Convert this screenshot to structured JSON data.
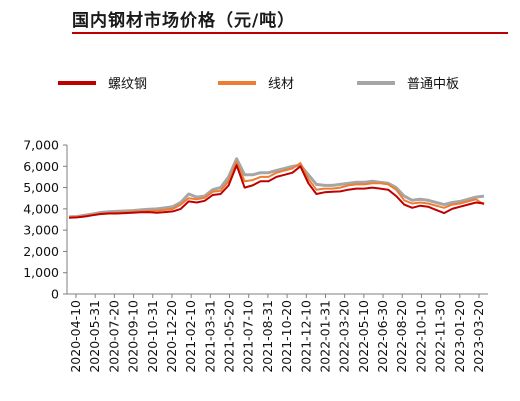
{
  "chart_data": {
    "type": "line",
    "title": "国内钢材市场价格（元/吨）",
    "ylim": [
      0,
      7000
    ],
    "y_ticks": [
      "0",
      "1,000",
      "2,000",
      "3,000",
      "4,000",
      "5,000",
      "6,000",
      "7,000"
    ],
    "x_tick_labels": [
      "2020-04-10",
      "2020-05-31",
      "2020-07-20",
      "2020-09-10",
      "2020-10-31",
      "2020-12-20",
      "2021-02-10",
      "2021-03-31",
      "2021-05-20",
      "2021-07-10",
      "2021-08-31",
      "2021-10-20",
      "2021-12-10",
      "2022-01-31",
      "2022-03-20",
      "2022-05-10",
      "2022-06-30",
      "2022-08-20",
      "2022-10-10",
      "2022-11-30",
      "2023-01-20",
      "2023-03-20"
    ],
    "legend_position": "top",
    "grid": false,
    "series": [
      {
        "name": "螺纹钢",
        "color": "#c00000",
        "values": [
          3580,
          3600,
          3640,
          3700,
          3760,
          3780,
          3780,
          3800,
          3820,
          3840,
          3850,
          3820,
          3850,
          3880,
          4000,
          4350,
          4300,
          4380,
          4650,
          4700,
          5100,
          6050,
          5000,
          5100,
          5300,
          5300,
          5500,
          5600,
          5700,
          6000,
          5200,
          4700,
          4780,
          4800,
          4820,
          4900,
          4950,
          4950,
          5000,
          4950,
          4900,
          4600,
          4200,
          4050,
          4150,
          4100,
          3950,
          3800,
          4000,
          4100,
          4200,
          4300,
          4250
        ]
      },
      {
        "name": "线材",
        "color": "#ed7d31",
        "values": [
          3600,
          3620,
          3660,
          3720,
          3780,
          3800,
          3820,
          3840,
          3860,
          3880,
          3900,
          3920,
          3950,
          4000,
          4200,
          4500,
          4450,
          4520,
          4800,
          4850,
          5300,
          6200,
          5300,
          5350,
          5500,
          5500,
          5700,
          5800,
          5900,
          6150,
          5400,
          4900,
          4950,
          4950,
          5000,
          5100,
          5150,
          5150,
          5200,
          5200,
          5150,
          4900,
          4400,
          4250,
          4300,
          4250,
          4150,
          4050,
          4200,
          4250,
          4350,
          4450,
          4200
        ]
      },
      {
        "name": "普通中板",
        "color": "#a6a6a6",
        "values": [
          3620,
          3640,
          3700,
          3760,
          3830,
          3860,
          3880,
          3900,
          3920,
          3950,
          3980,
          4000,
          4050,
          4100,
          4300,
          4700,
          4550,
          4600,
          4900,
          5000,
          5500,
          6350,
          5600,
          5600,
          5700,
          5700,
          5800,
          5900,
          6000,
          6050,
          5600,
          5150,
          5100,
          5100,
          5150,
          5200,
          5250,
          5250,
          5300,
          5250,
          5200,
          5000,
          4600,
          4400,
          4450,
          4400,
          4300,
          4200,
          4300,
          4350,
          4450,
          4550,
          4600
        ]
      }
    ]
  }
}
